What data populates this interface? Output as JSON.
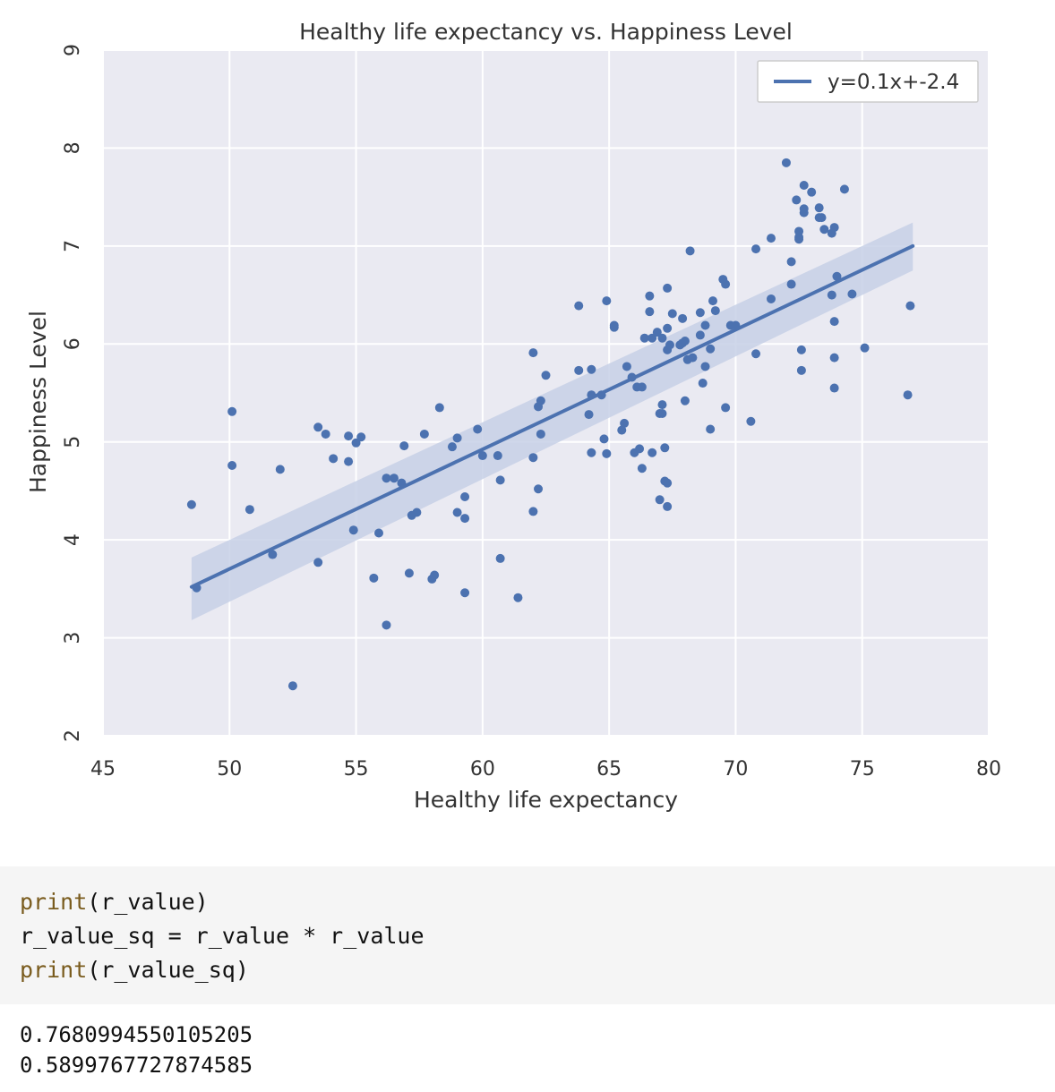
{
  "chart_data": {
    "type": "scatter",
    "title": "Healthy life expectancy vs. Happiness Level",
    "xlabel": "Healthy life expectancy",
    "ylabel": "Happiness Level",
    "xlim": [
      45,
      80
    ],
    "ylim": [
      2,
      9
    ],
    "xticks": [
      "45",
      "50",
      "55",
      "60",
      "65",
      "70",
      "75",
      "80"
    ],
    "yticks": [
      "2",
      "3",
      "4",
      "5",
      "6",
      "7",
      "8",
      "9"
    ],
    "grid": true,
    "legend_position": "top-right",
    "colors": {
      "points": "#4c72b0",
      "line": "#4c72b0",
      "band": "#c7d0e6",
      "background": "#eaeaf2",
      "grid": "#ffffff"
    },
    "regression": {
      "name": "y=0.1x+-2.4",
      "x": [
        48.5,
        77.0
      ],
      "y": [
        3.52,
        7.0
      ],
      "ci_low": [
        3.18,
        6.75
      ],
      "ci_high": [
        3.82,
        7.24
      ]
    },
    "points": [
      [
        48.5,
        4.36
      ],
      [
        48.7,
        3.51
      ],
      [
        50.1,
        5.31
      ],
      [
        50.1,
        4.76
      ],
      [
        50.8,
        4.31
      ],
      [
        51.7,
        3.85
      ],
      [
        52.0,
        4.72
      ],
      [
        52.5,
        2.51
      ],
      [
        53.5,
        3.77
      ],
      [
        53.5,
        5.15
      ],
      [
        53.8,
        5.08
      ],
      [
        54.1,
        4.83
      ],
      [
        54.7,
        5.06
      ],
      [
        54.7,
        4.8
      ],
      [
        54.9,
        4.1
      ],
      [
        55.0,
        4.99
      ],
      [
        55.2,
        5.05
      ],
      [
        55.7,
        3.61
      ],
      [
        55.9,
        4.07
      ],
      [
        56.2,
        4.63
      ],
      [
        56.2,
        3.13
      ],
      [
        56.5,
        4.63
      ],
      [
        56.8,
        4.58
      ],
      [
        56.9,
        4.96
      ],
      [
        57.1,
        3.66
      ],
      [
        57.2,
        4.25
      ],
      [
        57.4,
        4.28
      ],
      [
        57.7,
        5.08
      ],
      [
        58.0,
        3.6
      ],
      [
        58.1,
        3.64
      ],
      [
        58.3,
        5.35
      ],
      [
        58.8,
        4.95
      ],
      [
        59.0,
        5.04
      ],
      [
        59.0,
        4.28
      ],
      [
        59.3,
        4.22
      ],
      [
        59.3,
        4.44
      ],
      [
        59.3,
        3.46
      ],
      [
        59.8,
        5.13
      ],
      [
        60.0,
        4.86
      ],
      [
        60.6,
        4.86
      ],
      [
        60.7,
        3.81
      ],
      [
        60.7,
        4.61
      ],
      [
        61.4,
        3.41
      ],
      [
        62.0,
        5.91
      ],
      [
        62.0,
        4.84
      ],
      [
        62.0,
        4.29
      ],
      [
        62.2,
        4.52
      ],
      [
        62.2,
        5.36
      ],
      [
        62.3,
        5.42
      ],
      [
        62.3,
        5.08
      ],
      [
        62.5,
        5.68
      ],
      [
        63.8,
        6.39
      ],
      [
        63.8,
        5.73
      ],
      [
        64.2,
        5.28
      ],
      [
        64.3,
        5.74
      ],
      [
        64.3,
        5.48
      ],
      [
        64.3,
        4.89
      ],
      [
        64.7,
        5.48
      ],
      [
        64.8,
        5.03
      ],
      [
        64.9,
        4.88
      ],
      [
        64.9,
        6.44
      ],
      [
        65.2,
        6.17
      ],
      [
        65.2,
        6.19
      ],
      [
        65.5,
        5.12
      ],
      [
        65.6,
        5.19
      ],
      [
        65.7,
        5.77
      ],
      [
        65.9,
        5.66
      ],
      [
        66.0,
        4.89
      ],
      [
        66.1,
        5.56
      ],
      [
        66.2,
        4.93
      ],
      [
        66.3,
        4.73
      ],
      [
        66.3,
        5.56
      ],
      [
        66.4,
        6.06
      ],
      [
        66.6,
        6.49
      ],
      [
        66.6,
        6.33
      ],
      [
        66.7,
        4.89
      ],
      [
        66.7,
        6.06
      ],
      [
        66.9,
        6.12
      ],
      [
        67.0,
        5.29
      ],
      [
        67.0,
        4.41
      ],
      [
        67.1,
        6.06
      ],
      [
        67.1,
        5.38
      ],
      [
        67.1,
        5.29
      ],
      [
        67.2,
        4.94
      ],
      [
        67.2,
        4.6
      ],
      [
        67.3,
        6.57
      ],
      [
        67.3,
        6.16
      ],
      [
        67.3,
        5.94
      ],
      [
        67.3,
        4.58
      ],
      [
        67.3,
        4.34
      ],
      [
        67.4,
        5.99
      ],
      [
        67.5,
        6.31
      ],
      [
        67.8,
        5.99
      ],
      [
        67.9,
        6.26
      ],
      [
        67.9,
        6.01
      ],
      [
        68.0,
        6.03
      ],
      [
        68.0,
        5.42
      ],
      [
        68.1,
        5.84
      ],
      [
        68.2,
        6.95
      ],
      [
        68.3,
        5.86
      ],
      [
        68.6,
        6.09
      ],
      [
        68.6,
        6.32
      ],
      [
        68.7,
        5.6
      ],
      [
        68.8,
        5.77
      ],
      [
        68.8,
        6.19
      ],
      [
        69.0,
        5.95
      ],
      [
        69.0,
        5.13
      ],
      [
        69.1,
        6.44
      ],
      [
        69.2,
        6.34
      ],
      [
        69.5,
        6.66
      ],
      [
        69.6,
        5.35
      ],
      [
        69.6,
        6.61
      ],
      [
        69.8,
        6.19
      ],
      [
        70.0,
        6.19
      ],
      [
        70.6,
        5.21
      ],
      [
        70.8,
        6.97
      ],
      [
        70.8,
        5.9
      ],
      [
        71.4,
        7.08
      ],
      [
        71.4,
        6.46
      ],
      [
        72.0,
        7.85
      ],
      [
        72.2,
        6.84
      ],
      [
        72.2,
        6.61
      ],
      [
        72.4,
        7.47
      ],
      [
        72.5,
        7.09
      ],
      [
        72.5,
        7.15
      ],
      [
        72.5,
        7.07
      ],
      [
        72.6,
        5.94
      ],
      [
        72.6,
        5.73
      ],
      [
        72.7,
        7.34
      ],
      [
        72.7,
        7.62
      ],
      [
        72.7,
        7.38
      ],
      [
        73.0,
        7.55
      ],
      [
        73.3,
        7.39
      ],
      [
        73.3,
        7.29
      ],
      [
        73.4,
        7.29
      ],
      [
        73.5,
        7.17
      ],
      [
        73.8,
        7.13
      ],
      [
        73.8,
        6.5
      ],
      [
        73.9,
        6.23
      ],
      [
        73.9,
        5.86
      ],
      [
        73.9,
        5.55
      ],
      [
        73.9,
        7.19
      ],
      [
        74.0,
        6.69
      ],
      [
        74.3,
        7.58
      ],
      [
        74.6,
        6.51
      ],
      [
        75.1,
        5.96
      ],
      [
        76.8,
        5.48
      ],
      [
        76.9,
        6.39
      ]
    ]
  },
  "code_cell": {
    "line1_kw": "print",
    "line1_rest": "(r_value)",
    "line2": "r_value_sq = r_value * r_value",
    "line3_kw": "print",
    "line3_rest": "(r_value_sq)"
  },
  "output": {
    "line1": "0.7680994550105205",
    "line2": "0.5899767727874585"
  }
}
